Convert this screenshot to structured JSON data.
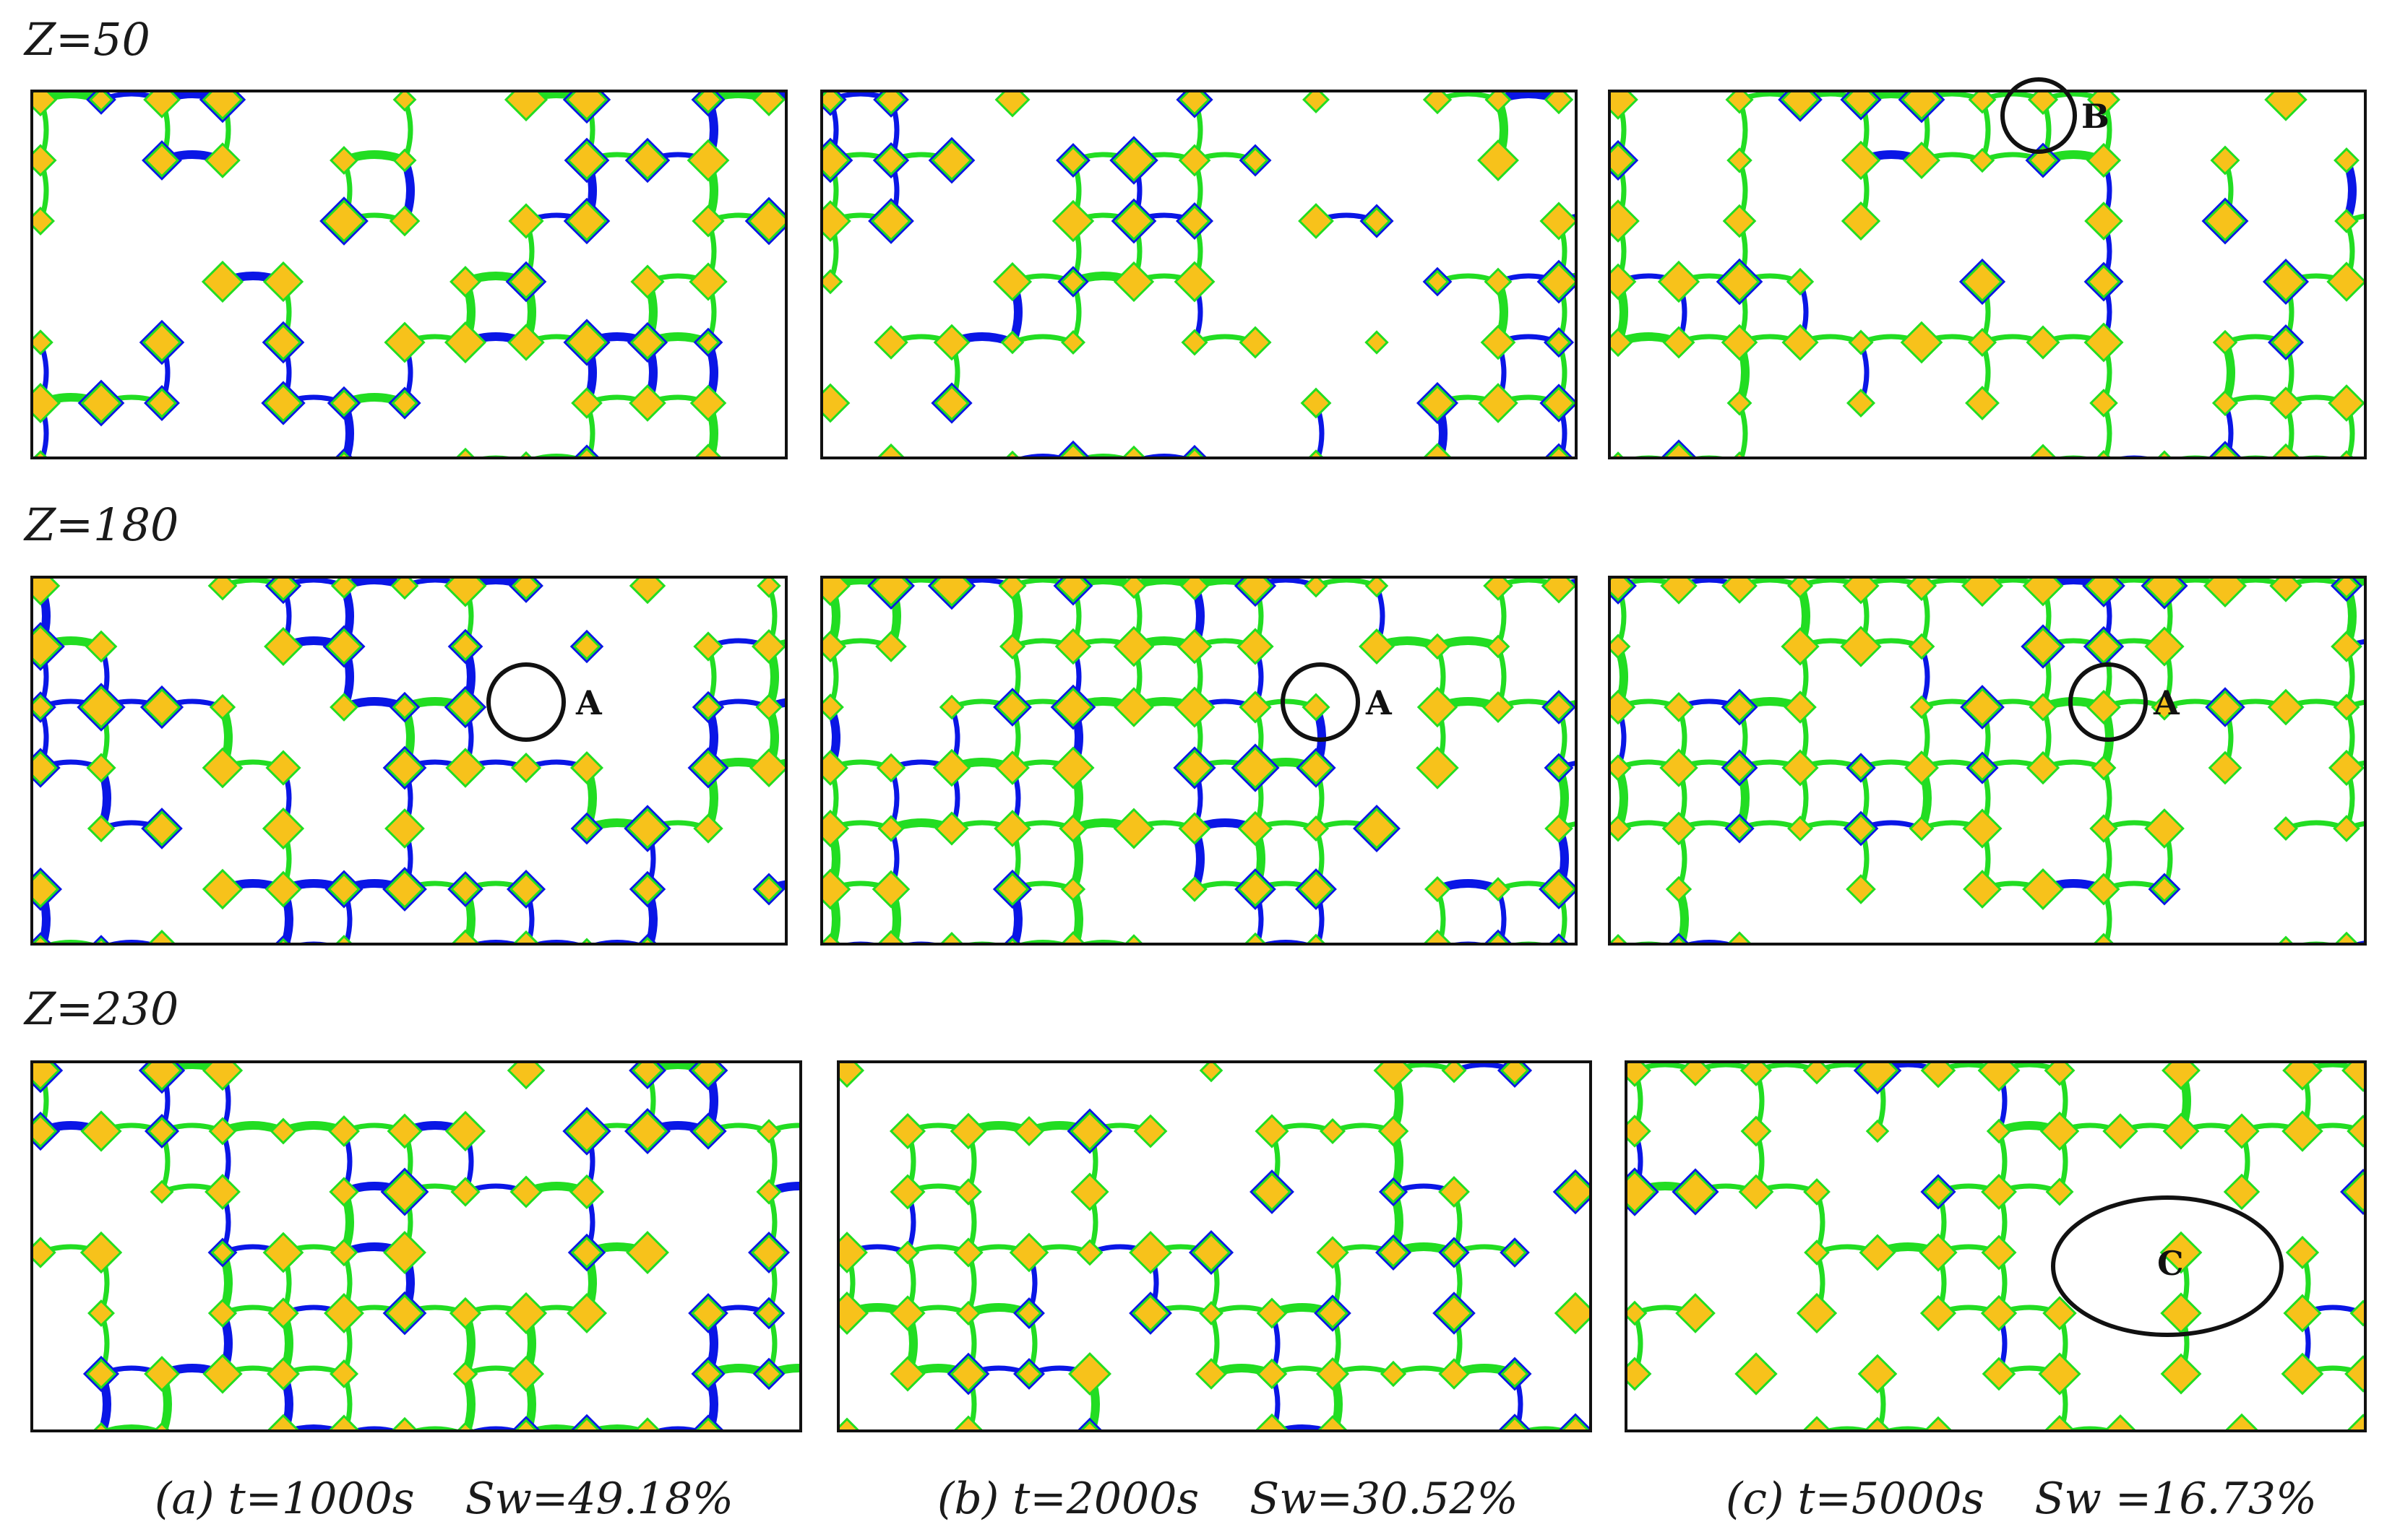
{
  "rows": [
    {
      "label": "Z=50",
      "panels": [
        {
          "markers": []
        },
        {
          "markers": []
        },
        {
          "markers": [
            {
              "label": "B"
            }
          ]
        }
      ]
    },
    {
      "label": "Z=180",
      "panels": [
        {
          "markers": [
            {
              "label": "A"
            }
          ]
        },
        {
          "markers": [
            {
              "label": "A"
            }
          ]
        },
        {
          "markers": [
            {
              "label": "A"
            }
          ]
        }
      ]
    },
    {
      "label": "Z=230",
      "panels": [
        {
          "markers": []
        },
        {
          "markers": []
        },
        {
          "markers": [
            {
              "label": "C"
            }
          ]
        }
      ]
    }
  ],
  "captions": [
    {
      "time": "(a) t=1000s",
      "saturation": "Sw=49.18%"
    },
    {
      "time": "(b) t=2000s",
      "saturation": "Sw=30.52%"
    },
    {
      "time": "(c) t=5000s",
      "saturation": "Sw =16.73%"
    }
  ],
  "colors": {
    "water": "#0a16e6",
    "oil": "#f7c21b",
    "interface": "#22dd22",
    "frame": "#111111",
    "background": "#ffffff"
  }
}
